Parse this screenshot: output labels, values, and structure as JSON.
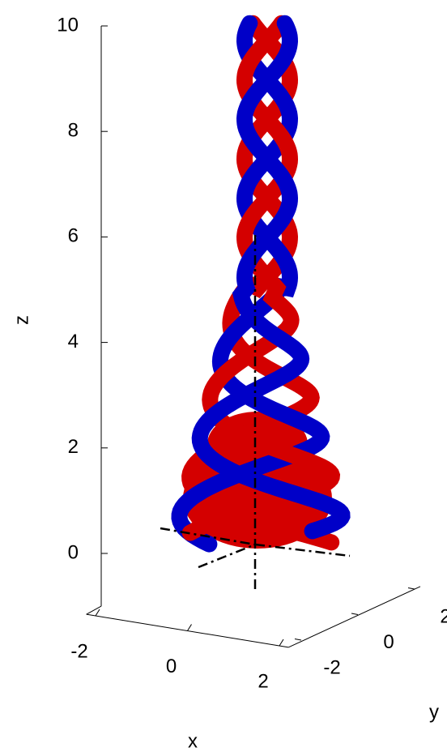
{
  "chart_data": {
    "type": "isosurface",
    "xlabel": "x",
    "ylabel": "y",
    "zlabel": "z",
    "xlim": [
      -2.2,
      2.2
    ],
    "ylim": [
      -2.2,
      2.2
    ],
    "zlim": [
      -1,
      10
    ],
    "xticks": [
      -2,
      0,
      2
    ],
    "yticks": [
      -2,
      0,
      2
    ],
    "zticks": [
      0,
      2,
      4,
      6,
      8,
      10
    ],
    "colors": [
      "#d40000",
      "#0000c8"
    ]
  }
}
